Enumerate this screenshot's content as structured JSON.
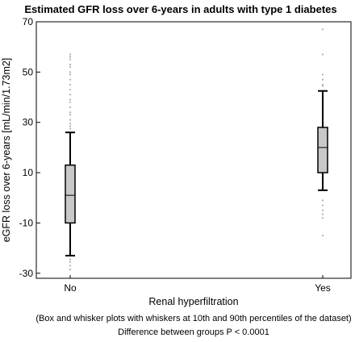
{
  "chart_data": {
    "type": "box",
    "title": "Estimated GFR loss over 6-years in adults with type 1 diabetes",
    "xlabel": "Renal hyperfiltration",
    "ylabel": "eGFR loss over 6-years [mL/min/1.73m2]",
    "ylim": [
      -32,
      70
    ],
    "yticks": [
      -30,
      -10,
      10,
      30,
      50,
      70
    ],
    "grid": false,
    "colors": {
      "box_fill": "#c8c8c8",
      "outlier": "#b0b0b0",
      "line": "#000000"
    },
    "categories": [
      "No",
      "Yes"
    ],
    "boxes": [
      {
        "category": "No",
        "whisker_low": -23,
        "q1": -10,
        "median": 1,
        "q3": 13,
        "whisker_high": 26,
        "outliers": [
          57,
          56,
          55,
          53,
          52,
          50,
          49,
          47,
          45,
          43,
          41,
          39,
          38,
          36,
          34,
          33,
          31,
          29.5,
          28.5,
          27.5,
          -24.5,
          -25.5,
          -27,
          -28.5
        ]
      },
      {
        "category": "Yes",
        "whisker_low": 3,
        "q1": 10,
        "median": 20,
        "q3": 28,
        "whisker_high": 42.5,
        "outliers": [
          67,
          57,
          49,
          47,
          45,
          44.5,
          -1,
          -3,
          -5,
          -6.5,
          -8,
          -15
        ]
      }
    ],
    "notes": [
      "(Box and whisker plots with whiskers at 10th and 90th percentiles of the dataset)",
      "Difference between groups P < 0.0001"
    ]
  }
}
